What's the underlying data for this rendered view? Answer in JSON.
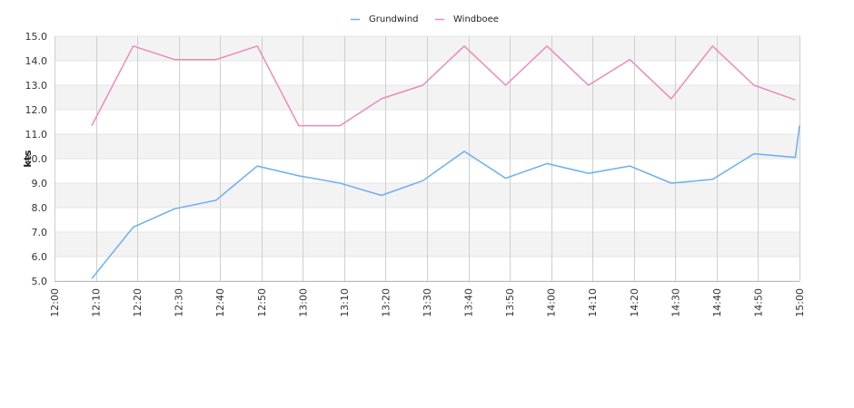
{
  "chart_data": {
    "type": "line",
    "ylabel": "kts",
    "ylim": [
      5.0,
      15.0
    ],
    "y_ticks": [
      "5.0",
      "6.0",
      "7.0",
      "8.0",
      "9.0",
      "10.0",
      "11.0",
      "12.0",
      "13.0",
      "14.0",
      "15.0"
    ],
    "x_ticks": [
      "12:00",
      "12:10",
      "12:20",
      "12:30",
      "12:40",
      "12:50",
      "13:00",
      "13:10",
      "13:20",
      "13:30",
      "13:40",
      "13:50",
      "14:00",
      "14:10",
      "14:20",
      "14:30",
      "14:40",
      "14:50",
      "15:00"
    ],
    "x_range": [
      "12:00",
      "15:00"
    ],
    "grid": true,
    "legend_position": "top-center",
    "series": [
      {
        "name": "Grundwind",
        "color": "#6aaff0",
        "points": [
          [
            "12:09",
            5.1
          ],
          [
            "12:19",
            7.2
          ],
          [
            "12:29",
            7.95
          ],
          [
            "12:39",
            8.3
          ],
          [
            "12:49",
            9.7
          ],
          [
            "12:59",
            9.3
          ],
          [
            "13:09",
            9.0
          ],
          [
            "13:19",
            8.5
          ],
          [
            "13:29",
            9.1
          ],
          [
            "13:39",
            10.3
          ],
          [
            "13:49",
            9.2
          ],
          [
            "13:59",
            9.8
          ],
          [
            "14:09",
            9.4
          ],
          [
            "14:19",
            9.7
          ],
          [
            "14:29",
            9.0
          ],
          [
            "14:39",
            9.15
          ],
          [
            "14:49",
            10.2
          ],
          [
            "14:59",
            10.05
          ],
          [
            "15:00",
            11.35
          ]
        ]
      },
      {
        "name": "Windboee",
        "color": "#ea8bb9",
        "points": [
          [
            "12:09",
            11.35
          ],
          [
            "12:19",
            14.6
          ],
          [
            "12:29",
            14.05
          ],
          [
            "12:39",
            14.05
          ],
          [
            "12:49",
            14.6
          ],
          [
            "12:59",
            11.35
          ],
          [
            "13:09",
            11.35
          ],
          [
            "13:19",
            12.45
          ],
          [
            "13:29",
            13.0
          ],
          [
            "13:39",
            14.6
          ],
          [
            "13:49",
            13.0
          ],
          [
            "13:59",
            14.6
          ],
          [
            "14:09",
            13.0
          ],
          [
            "14:19",
            14.05
          ],
          [
            "14:29",
            12.45
          ],
          [
            "14:39",
            14.6
          ],
          [
            "14:49",
            13.0
          ],
          [
            "14:59",
            12.4
          ]
        ]
      }
    ]
  }
}
